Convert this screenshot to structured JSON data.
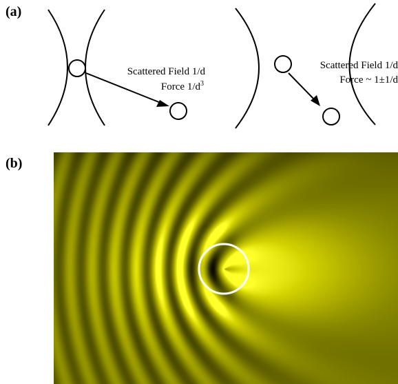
{
  "panel_a": {
    "label": "(a)",
    "left": {
      "caption_line1": "Scattered Field 1/d",
      "caption_line2_prefix": "Force 1/d",
      "caption_line2_sup": "3"
    },
    "right": {
      "caption_line1": "Scattered Field 1/d",
      "caption_line2": "Force ~ 1±1/d"
    }
  },
  "panel_b": {
    "label": "(b)",
    "colormap": {
      "dark": "#000000",
      "bright": "#ffff4a",
      "field_tint": "#d2d200"
    },
    "particle_outline_color": "#ffffff"
  }
}
